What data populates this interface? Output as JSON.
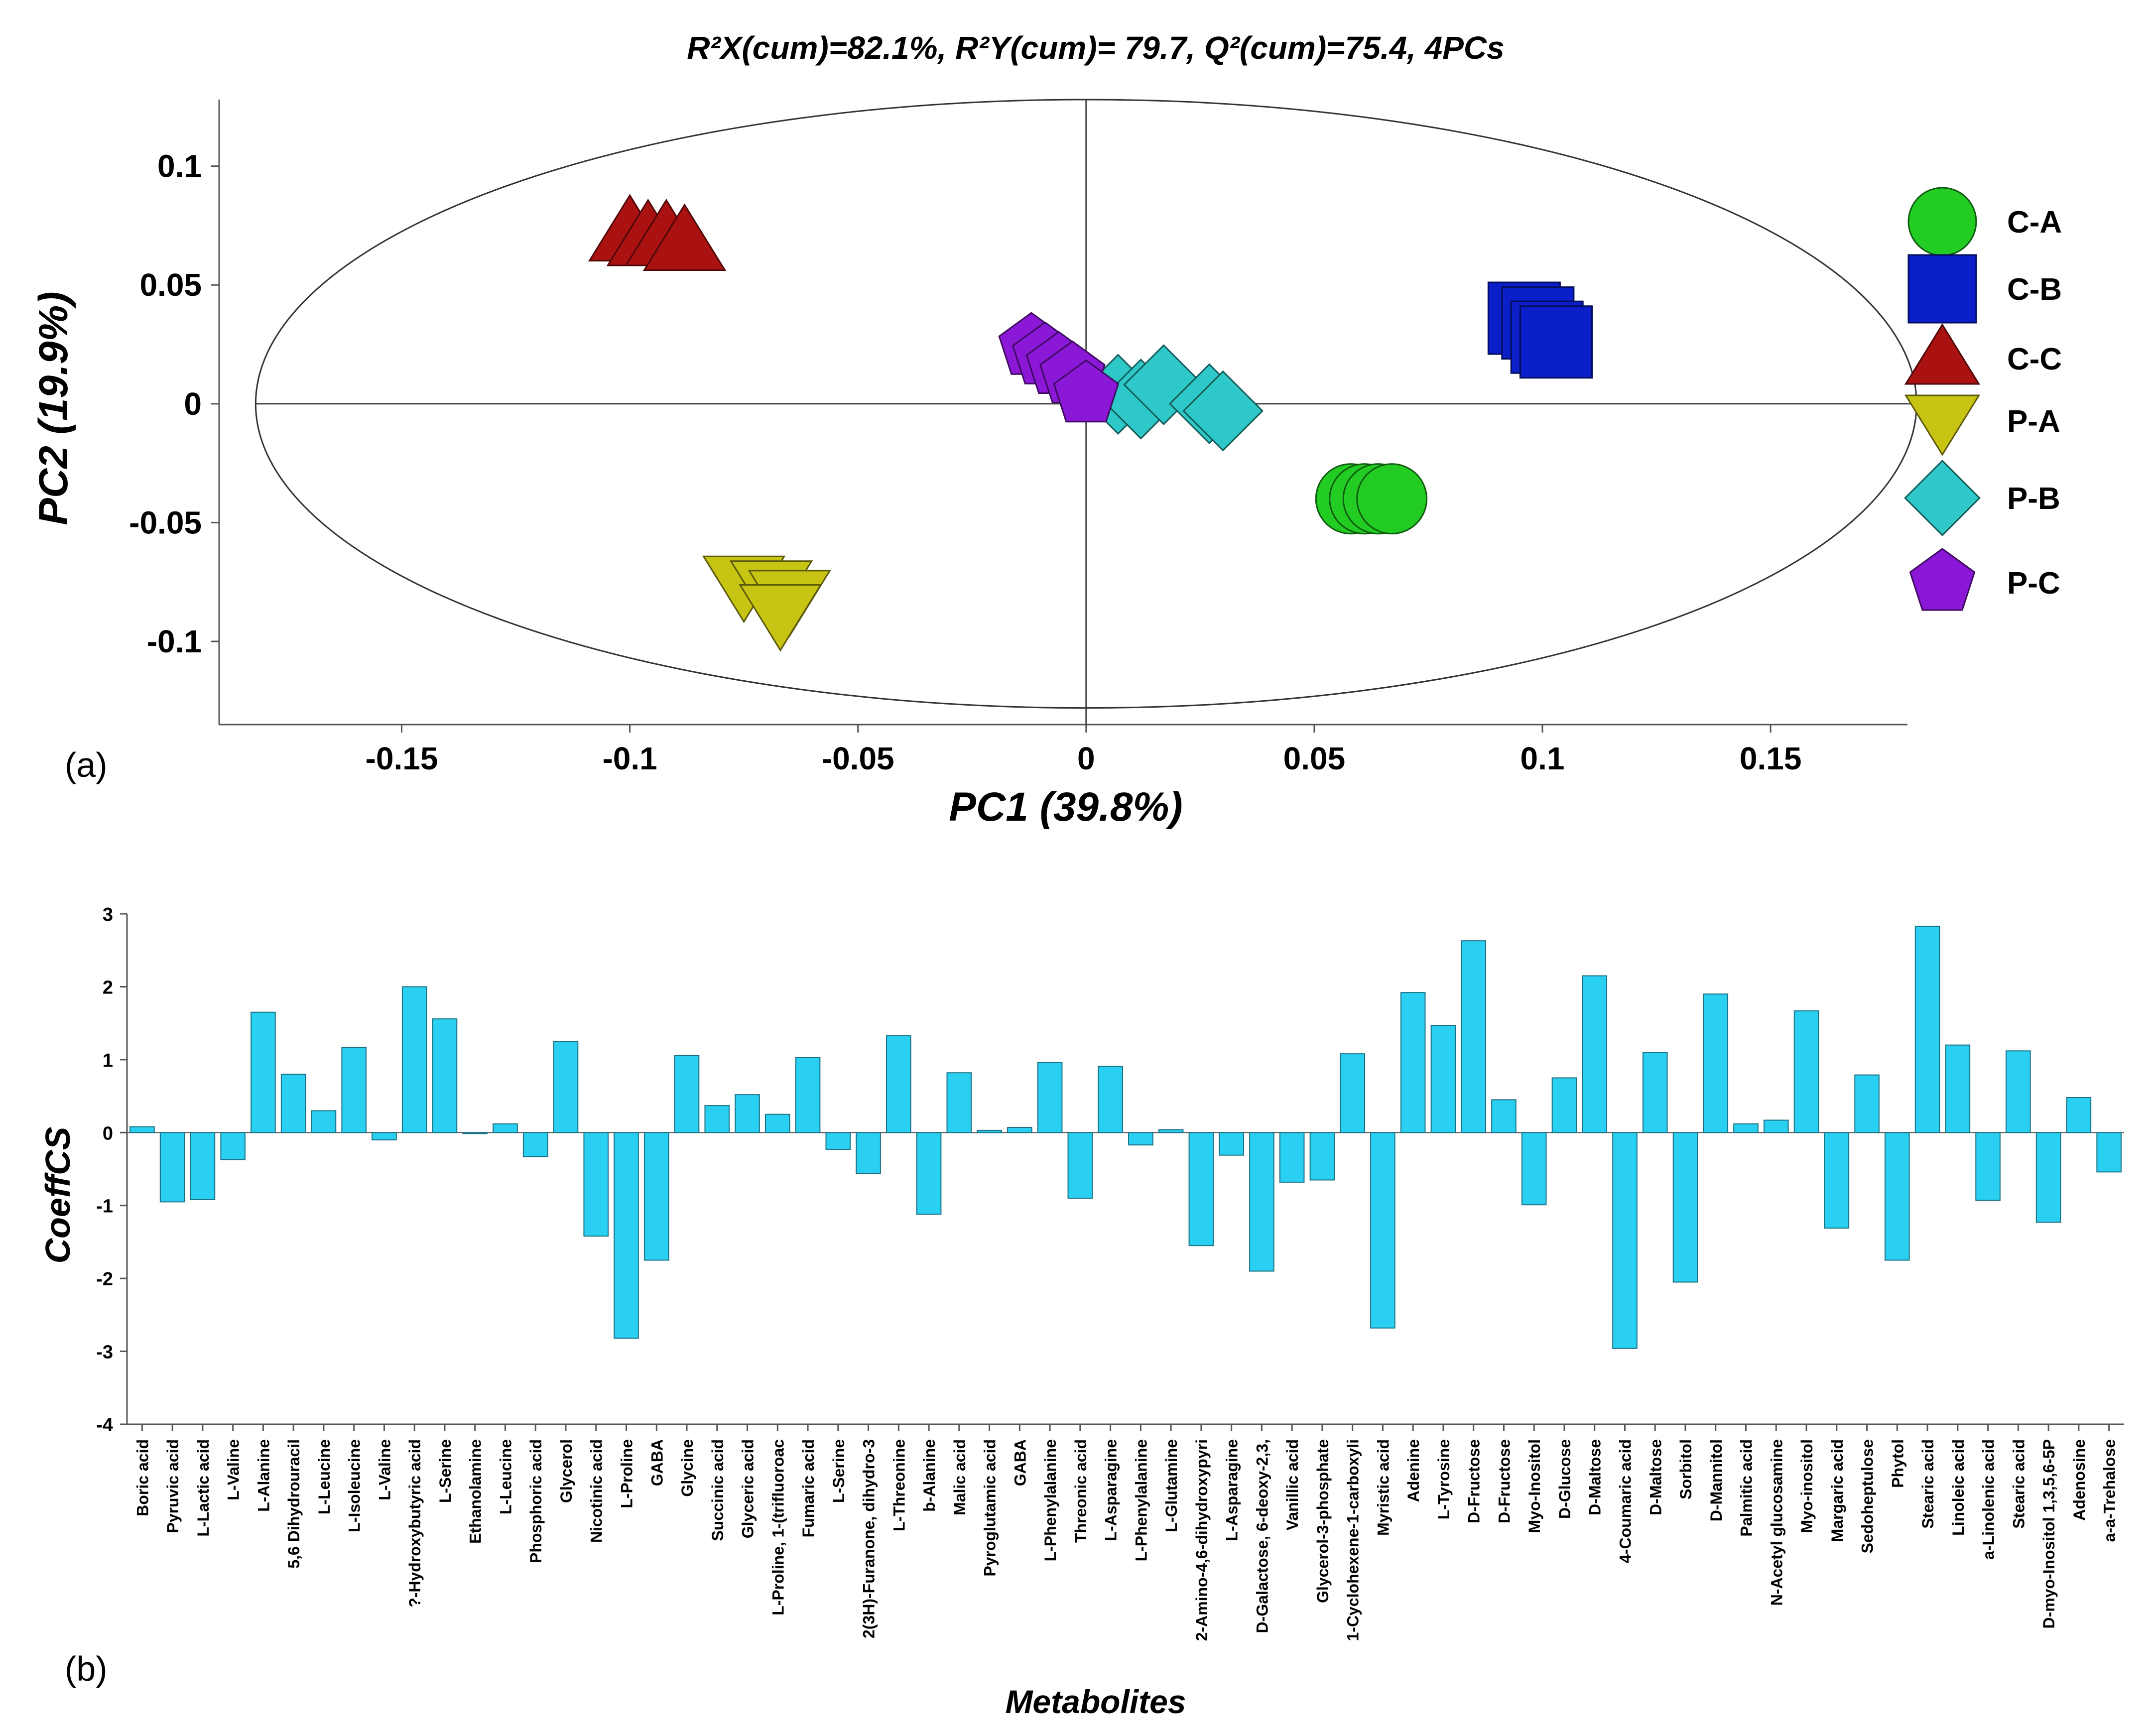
{
  "panel_a_label": "(a)",
  "panel_b_label": "(b)",
  "chart_data": [
    {
      "type": "scatter",
      "title_parts": {
        "r2x": "R²X(cum)=82.1%",
        "r2y": "R²Y(cum)= 79.7",
        "q2": "Q²(cum)=75.4",
        "pcs": "4PCs"
      },
      "xlabel": "PC1 (39.8%)",
      "ylabel": "PC2 (19.9%)",
      "xlim": [
        -0.19,
        0.18
      ],
      "ylim": [
        -0.135,
        0.128
      ],
      "xticks": [
        -0.15,
        -0.1,
        -0.05,
        0,
        0.05,
        0.1,
        0.15
      ],
      "xtick_labels": [
        "-0.15",
        "-0.1",
        "-0.05",
        "0",
        "0.05",
        "0.1",
        "0.15"
      ],
      "yticks": [
        0.1,
        0.05,
        0,
        -0.05,
        -0.1
      ],
      "ytick_labels": [
        "0.1",
        "0.05",
        "0",
        "-0.05",
        "-0.1"
      ],
      "ellipse": {
        "cx": 0,
        "cy": 0,
        "rx": 0.182,
        "ry": 0.128
      },
      "legend_position": "right",
      "series": [
        {
          "name": "C-A",
          "marker": "circle",
          "color": "#22cc22",
          "points": [
            [
              0.058,
              -0.04
            ],
            [
              0.061,
              -0.04
            ],
            [
              0.064,
              -0.04
            ],
            [
              0.067,
              -0.04
            ]
          ]
        },
        {
          "name": "C-B",
          "marker": "square",
          "color": "#0a1fc8",
          "points": [
            [
              0.096,
              0.036
            ],
            [
              0.099,
              0.034
            ],
            [
              0.101,
              0.028
            ],
            [
              0.103,
              0.026
            ]
          ]
        },
        {
          "name": "C-C",
          "marker": "triangle-up",
          "color": "#aa1111",
          "points": [
            [
              -0.1,
              0.072
            ],
            [
              -0.096,
              0.07
            ],
            [
              -0.092,
              0.07
            ],
            [
              -0.088,
              0.068
            ]
          ]
        },
        {
          "name": "P-A",
          "marker": "triangle-down",
          "color": "#c8c414",
          "points": [
            [
              -0.075,
              -0.076
            ],
            [
              -0.069,
              -0.078
            ],
            [
              -0.065,
              -0.082
            ],
            [
              -0.067,
              -0.088
            ]
          ]
        },
        {
          "name": "P-B",
          "marker": "diamond",
          "color": "#2ec8c8",
          "points": [
            [
              0.007,
              0.004
            ],
            [
              0.012,
              0.002
            ],
            [
              0.017,
              0.008
            ],
            [
              0.027,
              0.0
            ],
            [
              0.03,
              -0.003
            ]
          ]
        },
        {
          "name": "P-C",
          "marker": "pentagon",
          "color": "#8a18d6",
          "points": [
            [
              -0.012,
              0.024
            ],
            [
              -0.009,
              0.02
            ],
            [
              -0.006,
              0.016
            ],
            [
              -0.003,
              0.012
            ],
            [
              0.0,
              0.004
            ]
          ]
        }
      ]
    },
    {
      "type": "bar",
      "ylabel": "CoeffCS",
      "xlabel": "Metabolites",
      "ylim": [
        -4,
        3
      ],
      "yticks": [
        3,
        2,
        1,
        0,
        -1,
        -2,
        -3,
        -4
      ],
      "ytick_labels": [
        "3",
        "2",
        "1",
        "0",
        "-1",
        "-2",
        "-3",
        "-4"
      ],
      "bar_color": "#29d0f2",
      "categories": [
        "Boric acid",
        "Pyruvic acid",
        "L-Lactic acid",
        "L-Valine",
        "L-Alanine",
        "5,6 Dihydrouracil",
        "L-Leucine",
        "L-Isoleucine",
        "L-Valine",
        "?-Hydroxybutyric acid",
        "L-Serine",
        "Ethanolamine",
        "L-Leucine",
        "Phosphoric acid",
        "Glycerol",
        "Nicotinic acid",
        "L-Proline",
        "GABA",
        "Glycine",
        "Succinic acid",
        "Glyceric acid",
        "L-Proline, 1-(trifluoroac",
        "Fumaric acid",
        "L-Serine",
        "2(3H)-Furanone, dihydro-3",
        "L-Threonine",
        "b-Alanine",
        "Malic acid",
        "Pyroglutamic acid",
        "GABA",
        "L-Phenylalanine",
        "Threonic acid",
        "L-Asparagine",
        "L-Phenylalanine",
        "L-Glutamine",
        "2-Amino-4,6-dihydroxypyri",
        "L-Asparagine",
        "D-Galactose, 6-deoxy-2,3,",
        "Vanillic acid",
        "Glycerol-3-phosphate",
        "1-Cyclohexene-1-carboxyli",
        "Myristic acid",
        "Adenine",
        "L-Tyrosine",
        "D-Fructose",
        "D-Fructose",
        "Myo-Inositol",
        "D-Glucose",
        "D-Maltose",
        "4-Coumaric acid",
        "D-Maltose",
        "Sorbitol",
        "D-Mannitol",
        "Palmitic acid",
        "N-Acetyl glucosamine",
        "Myo-inositol",
        "Margaric acid",
        "Sedoheptulose",
        "Phytol",
        "Stearic acid",
        "Linoleic acid",
        "a-Linolenic acid",
        "Stearic acid",
        "D-myo-Inositol 1,3,5,6-5P",
        "Adenosine",
        "a-a-Trehalose"
      ],
      "values": [
        0.08,
        -0.95,
        -0.92,
        -0.37,
        1.65,
        0.8,
        0.3,
        1.17,
        -0.1,
        2.0,
        1.56,
        0.0,
        0.12,
        -0.33,
        1.25,
        -1.42,
        -2.82,
        -1.75,
        1.06,
        0.37,
        0.52,
        0.25,
        1.03,
        -0.23,
        -0.56,
        1.33,
        -1.12,
        0.82,
        0.03,
        0.07,
        0.96,
        -0.9,
        0.91,
        -0.17,
        0.04,
        -1.55,
        -0.31,
        -1.9,
        -0.68,
        -0.65,
        1.08,
        -2.68,
        1.92,
        1.47,
        2.63,
        0.45,
        -0.99,
        0.75,
        2.15,
        -2.96,
        1.1,
        -2.05,
        1.9,
        0.12,
        0.17,
        1.67,
        -1.31,
        0.79,
        -1.75,
        2.83,
        1.2,
        -0.93,
        1.12,
        -1.23,
        0.48,
        -0.54
      ]
    }
  ]
}
